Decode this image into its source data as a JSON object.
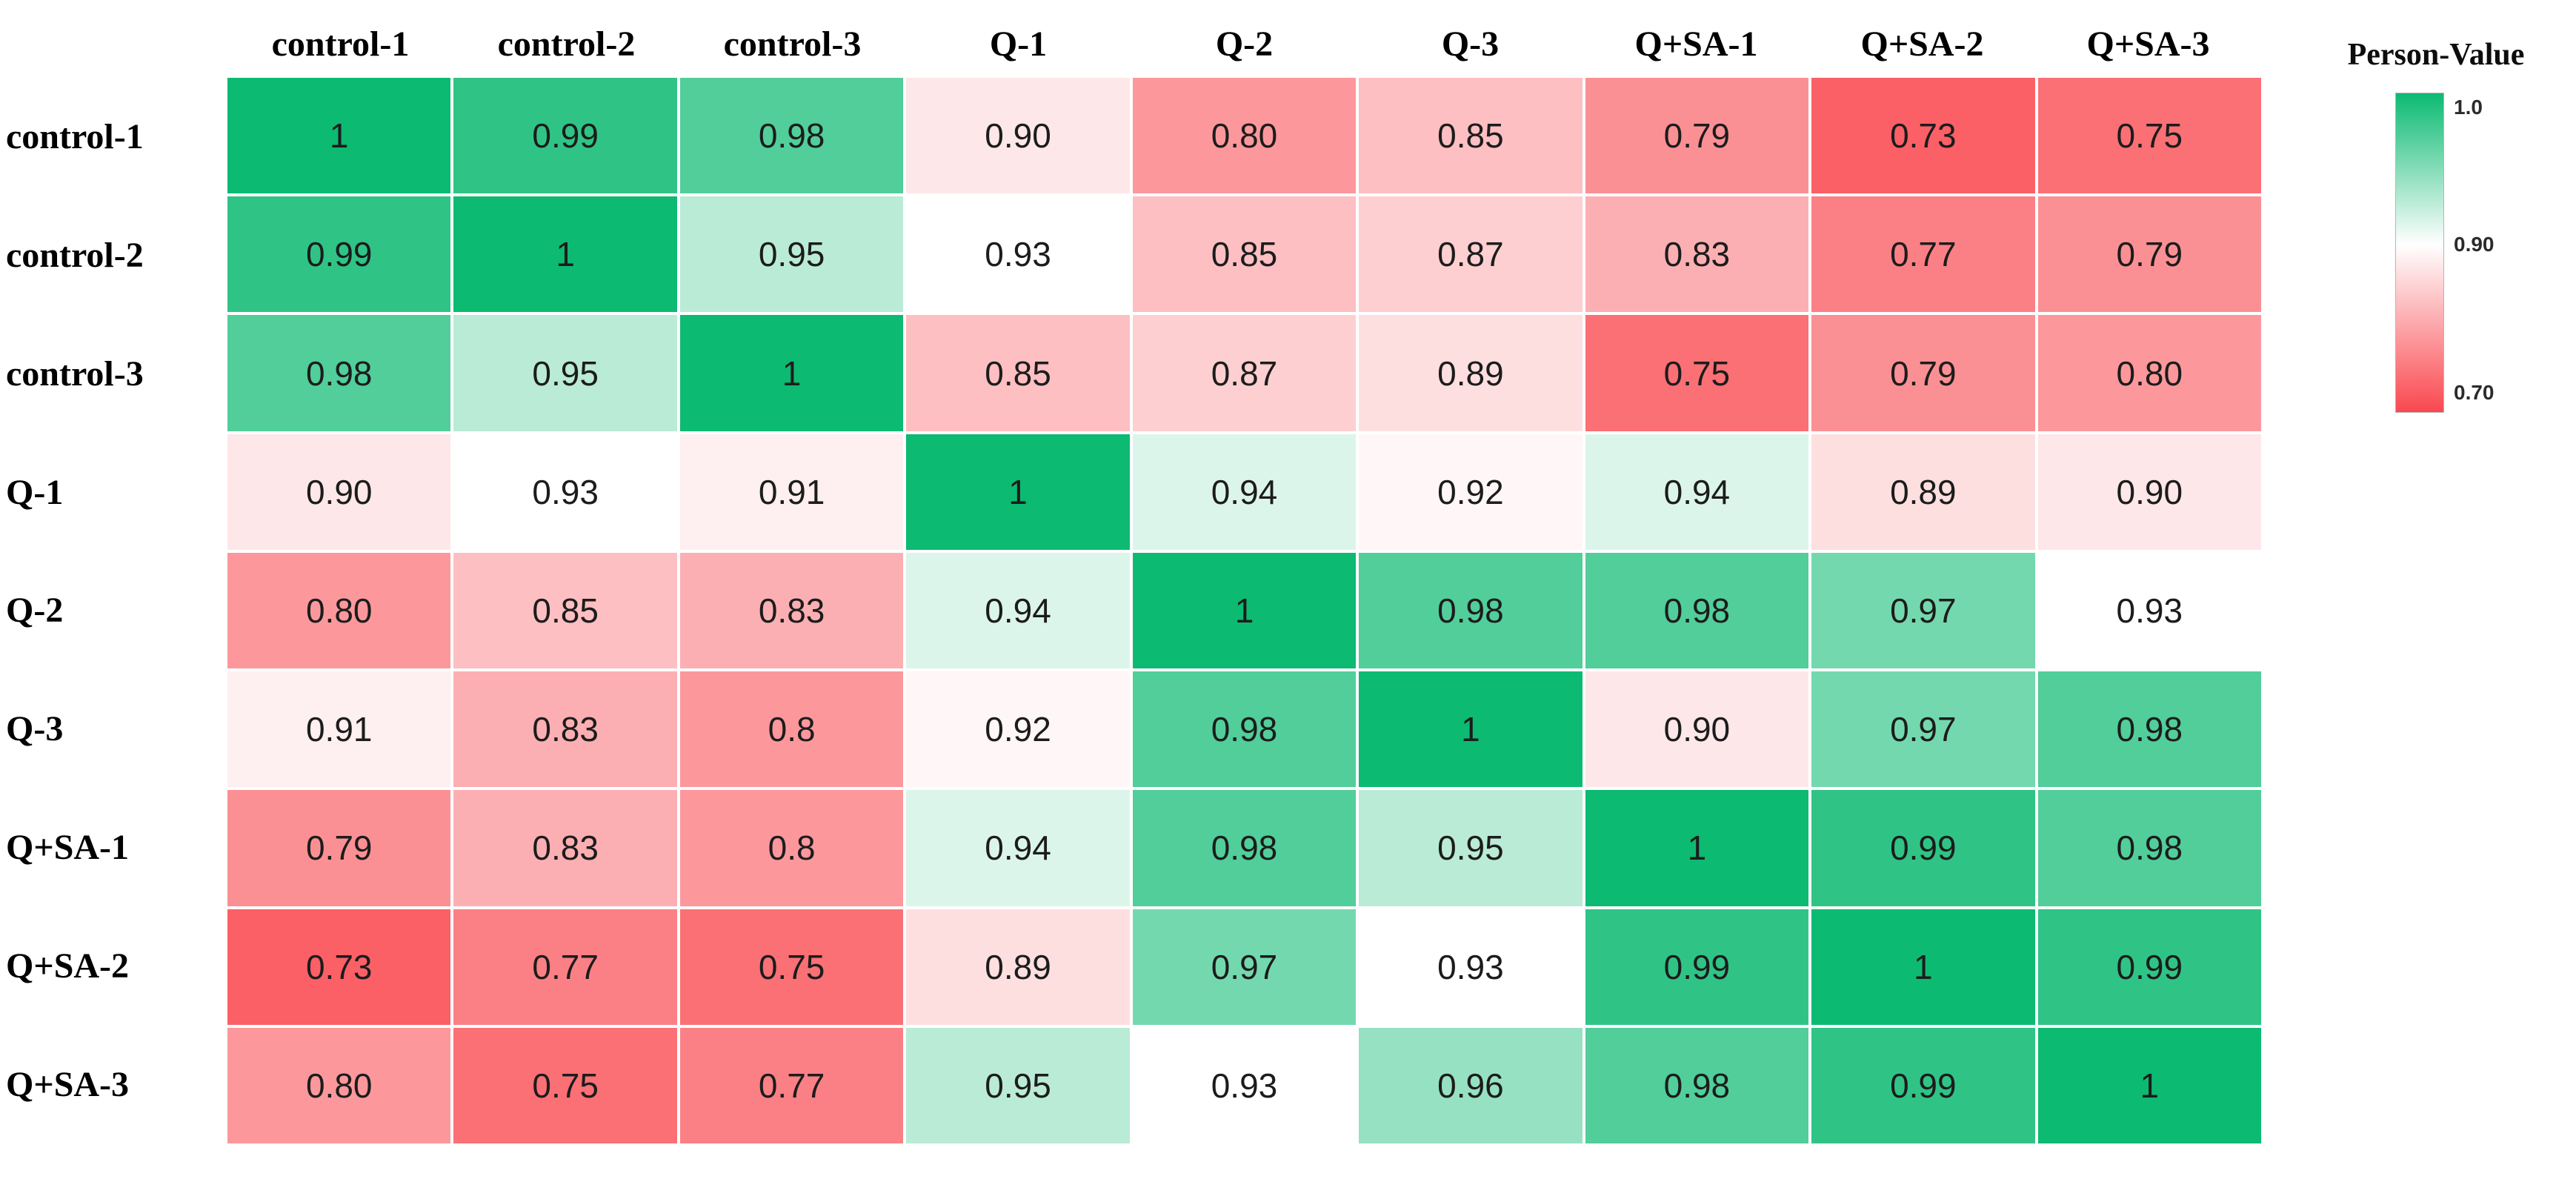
{
  "chart_data": {
    "type": "heatmap",
    "title": "",
    "categories": [
      "control-1",
      "control-2",
      "control-3",
      "Q-1",
      "Q-2",
      "Q-3",
      "Q+SA-1",
      "Q+SA-2",
      "Q+SA-3"
    ],
    "rows": [
      "control-1",
      "control-2",
      "control-3",
      "Q-1",
      "Q-2",
      "Q-3",
      "Q+SA-1",
      "Q+SA-2",
      "Q+SA-3"
    ],
    "values": [
      [
        1,
        0.99,
        0.98,
        0.9,
        0.8,
        0.85,
        0.79,
        0.73,
        0.75
      ],
      [
        0.99,
        1,
        0.95,
        0.93,
        0.85,
        0.87,
        0.83,
        0.77,
        0.79
      ],
      [
        0.98,
        0.95,
        1,
        0.85,
        0.87,
        0.89,
        0.75,
        0.79,
        0.8
      ],
      [
        0.9,
        0.93,
        0.91,
        1,
        0.94,
        0.92,
        0.94,
        0.89,
        0.9
      ],
      [
        0.8,
        0.85,
        0.83,
        0.94,
        1,
        0.98,
        0.98,
        0.97,
        0.93
      ],
      [
        0.91,
        0.83,
        0.8,
        0.92,
        0.98,
        1,
        0.9,
        0.97,
        0.98
      ],
      [
        0.79,
        0.83,
        0.8,
        0.94,
        0.98,
        0.95,
        1,
        0.99,
        0.98
      ],
      [
        0.73,
        0.77,
        0.75,
        0.89,
        0.97,
        0.93,
        0.99,
        1,
        0.99
      ],
      [
        0.8,
        0.75,
        0.77,
        0.95,
        0.93,
        0.96,
        0.98,
        0.99,
        1
      ]
    ],
    "display": [
      [
        "1",
        "0.99",
        "0.98",
        "0.90",
        "0.80",
        "0.85",
        "0.79",
        "0.73",
        "0.75"
      ],
      [
        "0.99",
        "1",
        "0.95",
        "0.93",
        "0.85",
        "0.87",
        "0.83",
        "0.77",
        "0.79"
      ],
      [
        "0.98",
        "0.95",
        "1",
        "0.85",
        "0.87",
        "0.89",
        "0.75",
        "0.79",
        "0.80"
      ],
      [
        "0.90",
        "0.93",
        "0.91",
        "1",
        "0.94",
        "0.92",
        "0.94",
        "0.89",
        "0.90"
      ],
      [
        "0.80",
        "0.85",
        "0.83",
        "0.94",
        "1",
        "0.98",
        "0.98",
        "0.97",
        "0.93"
      ],
      [
        "0.91",
        "0.83",
        "0.8",
        "0.92",
        "0.98",
        "1",
        "0.90",
        "0.97",
        "0.98"
      ],
      [
        "0.79",
        "0.83",
        "0.8",
        "0.94",
        "0.98",
        "0.95",
        "1",
        "0.99",
        "0.98"
      ],
      [
        "0.73",
        "0.77",
        "0.75",
        "0.89",
        "0.97",
        "0.93",
        "0.99",
        "1",
        "0.99"
      ],
      [
        "0.80",
        "0.75",
        "0.77",
        "0.95",
        "0.93",
        "0.96",
        "0.98",
        "0.99",
        "1"
      ]
    ],
    "legend": {
      "title": "Person-Value",
      "position": "right",
      "ticks": [
        {
          "label": "1.0",
          "value": 1.0,
          "pos": 0.046
        },
        {
          "label": "0.90",
          "value": 0.9,
          "pos": 0.475
        },
        {
          "label": "0.70",
          "value": 0.7,
          "pos": 0.937
        }
      ]
    },
    "colormap": {
      "max_color": "#0cba72",
      "mid_color": "#ffffff",
      "min_color": "#f9484f",
      "max_value": 1.0,
      "white_point": 0.93,
      "min_value": 0.7
    }
  }
}
